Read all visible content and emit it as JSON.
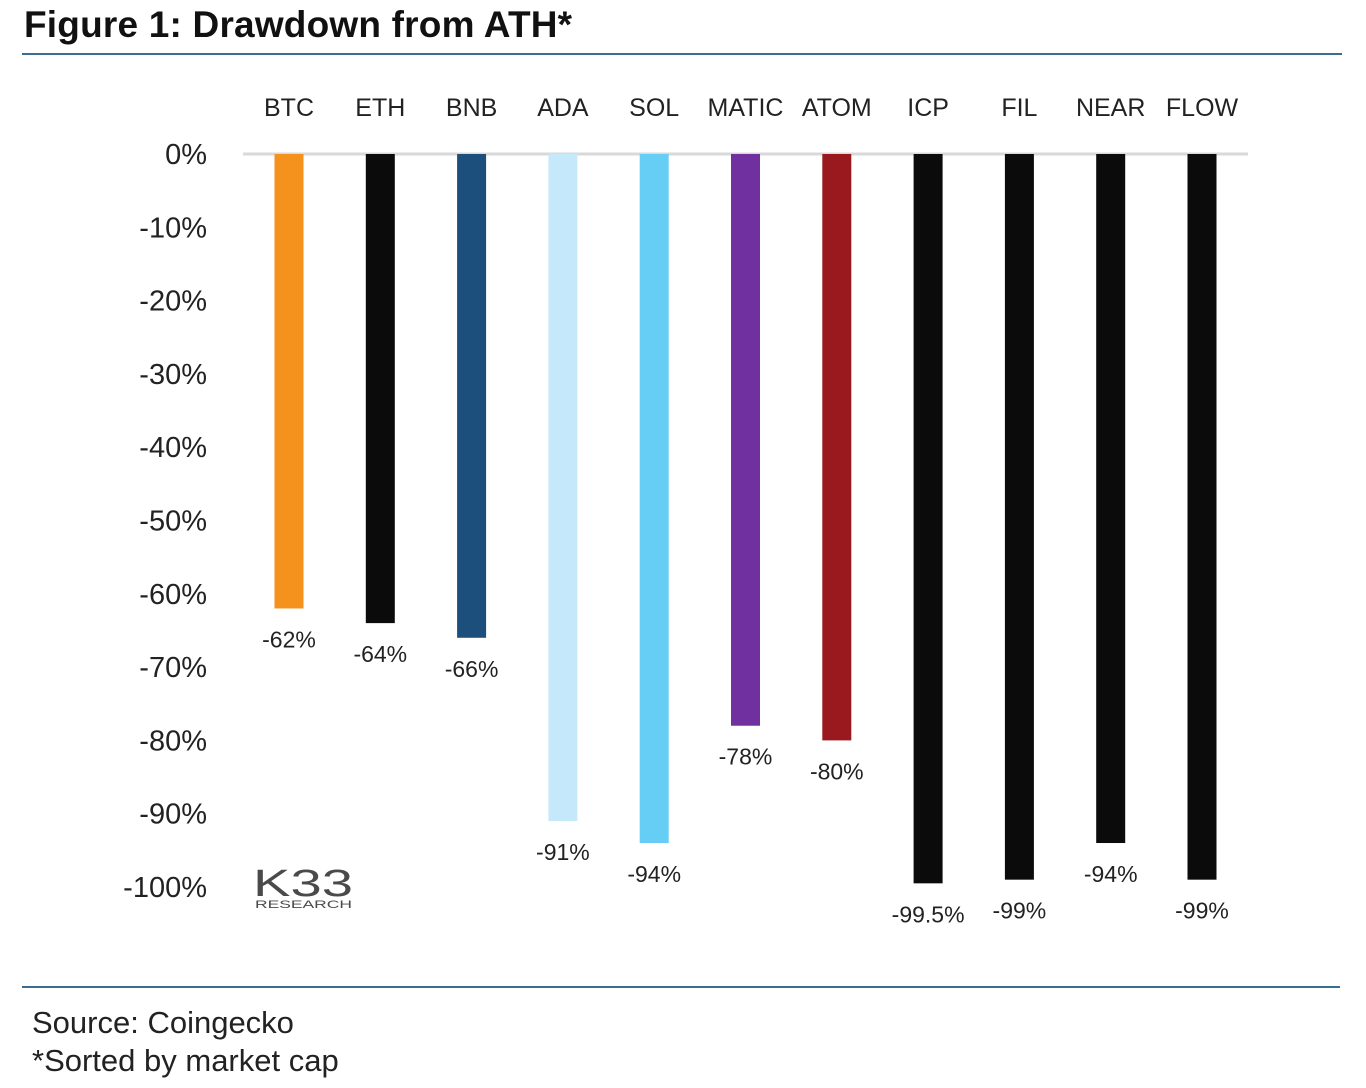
{
  "figure": {
    "title": "Figure 1: Drawdown from ATH*",
    "source": "Source: Coingecko",
    "note": "*Sorted by market cap"
  },
  "logo": {
    "main": "K33",
    "sub": "RESEARCH"
  },
  "chart_data": {
    "type": "bar",
    "title": "Figure 1: Drawdown from ATH*",
    "xlabel": "",
    "ylabel": "",
    "ylim": [
      -100,
      0
    ],
    "grid": false,
    "legend": "none",
    "categories": [
      "BTC",
      "ETH",
      "BNB",
      "ADA",
      "SOL",
      "MATIC",
      "ATOM",
      "ICP",
      "FIL",
      "NEAR",
      "FLOW"
    ],
    "values": [
      -62,
      -64,
      -66,
      -91,
      -94,
      -78,
      -80,
      -99.5,
      -99,
      -94,
      -99
    ],
    "data_labels": [
      "-62%",
      "-64%",
      "-66%",
      "-91%",
      "-94%",
      "-78%",
      "-80%",
      "-99.5%",
      "-99%",
      "-94%",
      "-99%"
    ],
    "colors": [
      "#f5921e",
      "#0b0b0b",
      "#1c4f7c",
      "#c5e9fb",
      "#66cdf5",
      "#7030a0",
      "#99191f",
      "#0b0b0b",
      "#0b0b0b",
      "#0b0b0b",
      "#0b0b0b"
    ],
    "y_ticks": [
      {
        "value": 0,
        "label": "0%"
      },
      {
        "value": -10,
        "label": "-10%"
      },
      {
        "value": -20,
        "label": "-20%"
      },
      {
        "value": -30,
        "label": "-30%"
      },
      {
        "value": -40,
        "label": "-40%"
      },
      {
        "value": -50,
        "label": "-50%"
      },
      {
        "value": -60,
        "label": "-60%"
      },
      {
        "value": -70,
        "label": "-70%"
      },
      {
        "value": -80,
        "label": "-80%"
      },
      {
        "value": -90,
        "label": "-90%"
      },
      {
        "value": -100,
        "label": "-100%"
      }
    ]
  }
}
